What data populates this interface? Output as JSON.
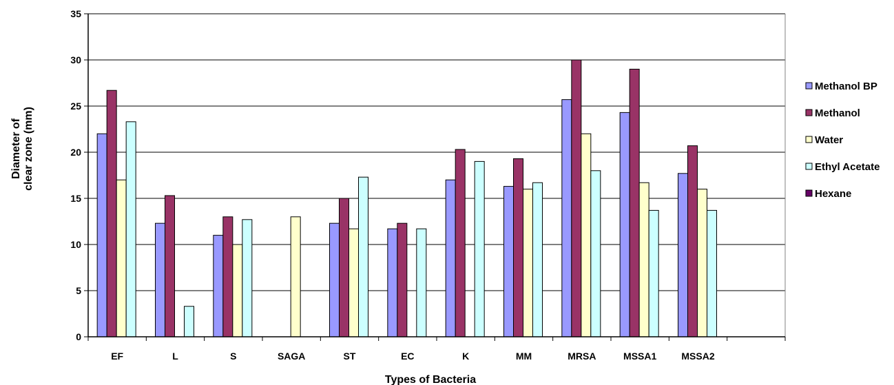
{
  "chart_data": {
    "type": "bar",
    "title": "",
    "xlabel": "Types of Bacteria",
    "ylabel_lines": [
      "Diameter of",
      "clear zone (mm)"
    ],
    "ylim": [
      0,
      35
    ],
    "yticks": [
      0,
      5,
      10,
      15,
      20,
      25,
      30,
      35
    ],
    "grid": true,
    "legend_position": "right",
    "categories": [
      "EF",
      "L",
      "S",
      "SAGA",
      "ST",
      "EC",
      "K",
      "MM",
      "MRSA",
      "MSSA1",
      "MSSA2",
      ""
    ],
    "series": [
      {
        "name": "Methanol BP",
        "color": "#9999ff",
        "values": [
          22,
          12.3,
          11,
          0,
          12.3,
          11.7,
          17,
          16.3,
          25.7,
          24.3,
          17.7,
          0
        ]
      },
      {
        "name": "Methanol",
        "color": "#993366",
        "values": [
          26.7,
          15.3,
          13,
          0,
          15,
          12.3,
          20.3,
          19.3,
          30,
          29,
          20.7,
          0
        ]
      },
      {
        "name": "Water",
        "color": "#ffffcc",
        "values": [
          17,
          0,
          10,
          13,
          11.7,
          0,
          0,
          16,
          22,
          16.7,
          16,
          0
        ]
      },
      {
        "name": "Ethyl Acetate",
        "color": "#ccffff",
        "values": [
          23.3,
          3.3,
          12.7,
          0,
          17.3,
          11.7,
          19,
          16.7,
          18,
          13.7,
          13.7,
          0
        ]
      },
      {
        "name": "Hexane",
        "color": "#660066",
        "values": [
          0,
          0,
          0,
          0,
          0,
          0,
          0,
          0,
          0,
          0,
          0,
          0
        ]
      }
    ]
  }
}
